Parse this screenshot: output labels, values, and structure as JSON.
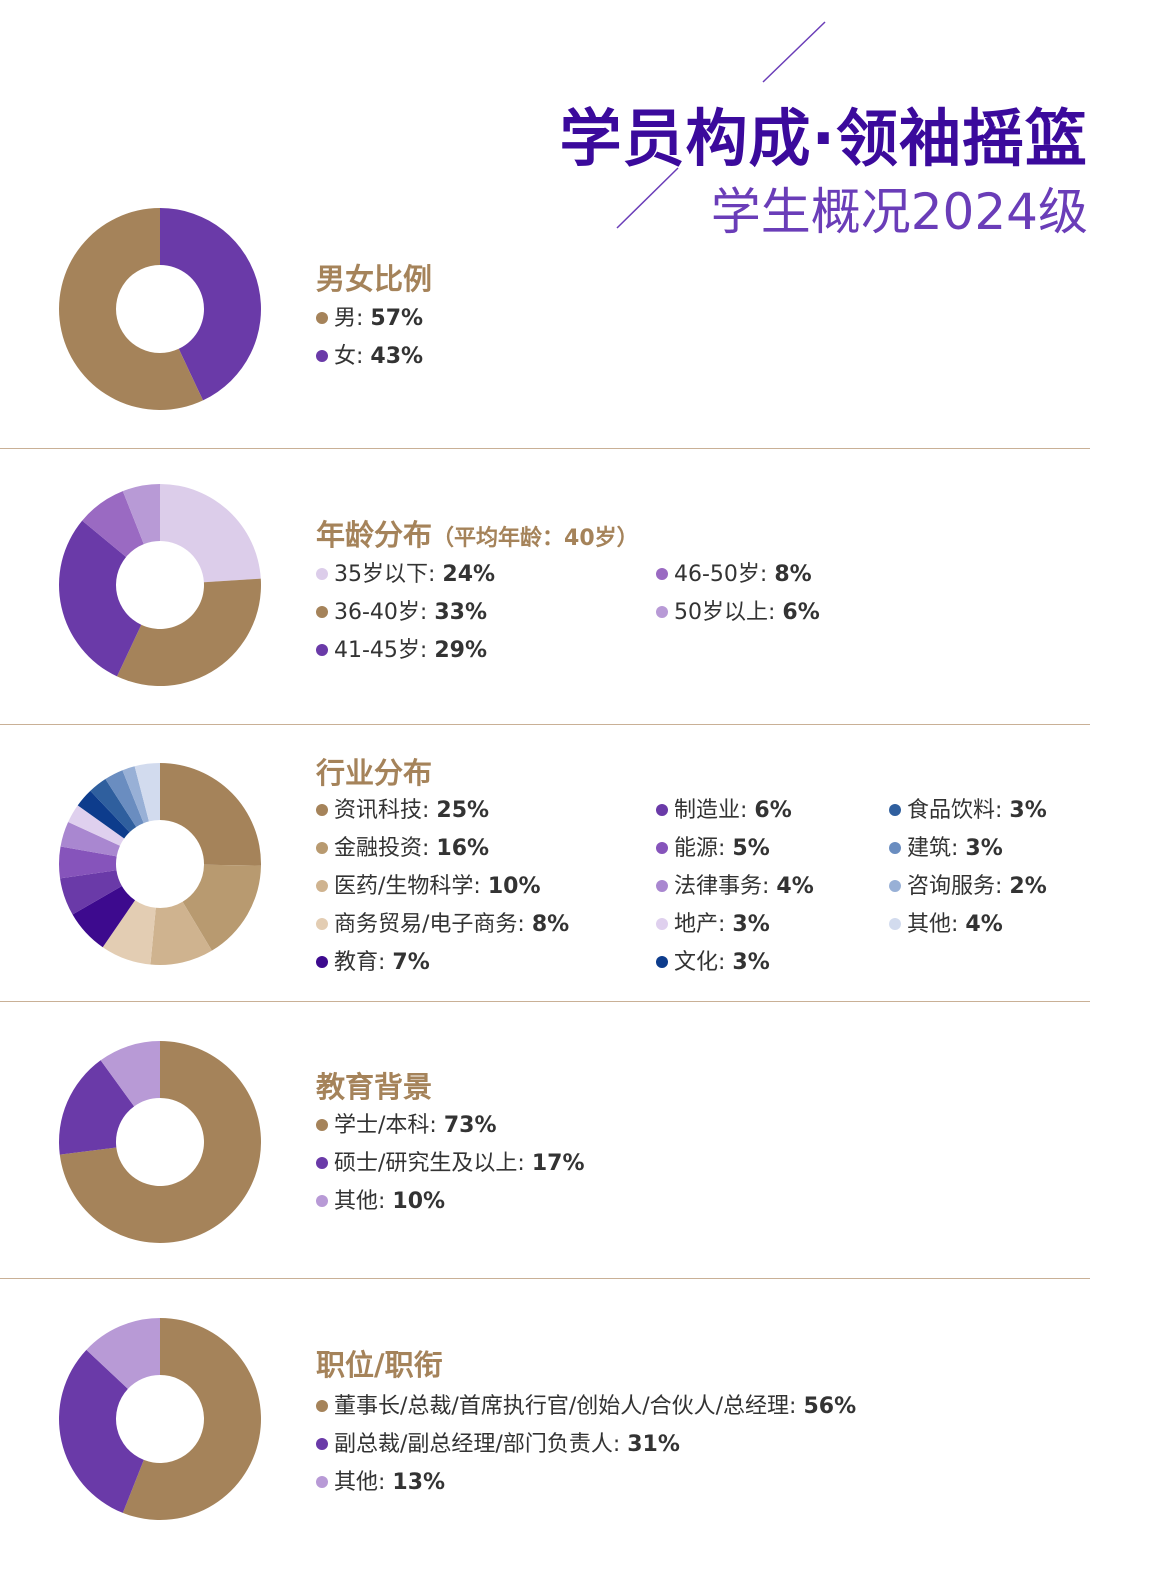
{
  "header": {
    "title": "学员构成·领袖摇篮",
    "subtitle": "学生概况2024级"
  },
  "colors": {
    "brown": "#a5835a",
    "purple": "#6a3aa8",
    "title_purple": "#3b0a9c"
  },
  "chart_data": [
    {
      "type": "pie",
      "title": "男女比例",
      "note": "",
      "slices": [
        {
          "label": "男",
          "value_text": "57%",
          "value": 57,
          "color": "#a5835a"
        },
        {
          "label": "女",
          "value_text": "43%",
          "value": 43,
          "color": "#6a3aa8"
        }
      ],
      "order": [
        1,
        0
      ]
    },
    {
      "type": "pie",
      "title": "年龄分布",
      "note": "（平均年龄：40岁）",
      "slices": [
        {
          "label": "35岁以下",
          "value_text": "24%",
          "value": 24,
          "color": "#dccdea"
        },
        {
          "label": "36-40岁",
          "value_text": "33%",
          "value": 33,
          "color": "#a5835a"
        },
        {
          "label": "41-45岁",
          "value_text": "29%",
          "value": 29,
          "color": "#6a3aa8"
        },
        {
          "label": "46-50岁",
          "value_text": "8%",
          "value": 8,
          "color": "#9a6ac2"
        },
        {
          "label": "50岁以上",
          "value_text": "6%",
          "value": 6,
          "color": "#b89ad6"
        }
      ],
      "order": [
        0,
        1,
        2,
        3,
        4
      ]
    },
    {
      "type": "pie",
      "title": "行业分布",
      "note": "",
      "slices": [
        {
          "label": "资讯科技",
          "value_text": "25%",
          "value": 25,
          "color": "#a5835a"
        },
        {
          "label": "金融投资",
          "value_text": "16%",
          "value": 16,
          "color": "#b89a70"
        },
        {
          "label": "医药/生物科学",
          "value_text": "10%",
          "value": 10,
          "color": "#cfb38f"
        },
        {
          "label": "商务贸易/电子商务",
          "value_text": "8%",
          "value": 8,
          "color": "#e3cdb3"
        },
        {
          "label": "教育",
          "value_text": "7%",
          "value": 7,
          "color": "#3d0a8e"
        },
        {
          "label": "制造业",
          "value_text": "6%",
          "value": 6,
          "color": "#6a3aa8"
        },
        {
          "label": "能源",
          "value_text": "5%",
          "value": 5,
          "color": "#8654bb"
        },
        {
          "label": "法律事务",
          "value_text": "4%",
          "value": 4,
          "color": "#a987d0"
        },
        {
          "label": "地产",
          "value_text": "3%",
          "value": 3,
          "color": "#dfd0ee"
        },
        {
          "label": "文化",
          "value_text": "3%",
          "value": 3,
          "color": "#0d3c8c"
        },
        {
          "label": "食品饮料",
          "value_text": "3%",
          "value": 3,
          "color": "#2f5f9e"
        },
        {
          "label": "建筑",
          "value_text": "3%",
          "value": 3,
          "color": "#6a8dc0"
        },
        {
          "label": "咨询服务",
          "value_text": "2%",
          "value": 2,
          "color": "#98b0d6"
        },
        {
          "label": "其他",
          "value_text": "4%",
          "value": 4,
          "color": "#d2dbee"
        }
      ],
      "order": [
        0,
        1,
        2,
        3,
        4,
        5,
        6,
        7,
        8,
        9,
        10,
        11,
        12,
        13
      ]
    },
    {
      "type": "pie",
      "title": "教育背景",
      "note": "",
      "slices": [
        {
          "label": "学士/本科",
          "value_text": "73%",
          "value": 73,
          "color": "#a5835a"
        },
        {
          "label": "硕士/研究生及以上",
          "value_text": "17%",
          "value": 17,
          "color": "#6a3aa8"
        },
        {
          "label": "其他",
          "value_text": "10%",
          "value": 10,
          "color": "#b89ad6"
        }
      ],
      "order": [
        0,
        1,
        2
      ]
    },
    {
      "type": "pie",
      "title": "职位/职衔",
      "note": "",
      "slices": [
        {
          "label": "董事长/总裁/首席执行官/创始人/合伙人/总经理",
          "value_text": "56%",
          "value": 56,
          "color": "#a5835a"
        },
        {
          "label": "副总裁/副总经理/部门负责人",
          "value_text": "31%",
          "value": 31,
          "color": "#6a3aa8"
        },
        {
          "label": "其他",
          "value_text": "13%",
          "value": 13,
          "color": "#b89ad6"
        }
      ],
      "order": [
        0,
        1,
        2
      ]
    }
  ]
}
